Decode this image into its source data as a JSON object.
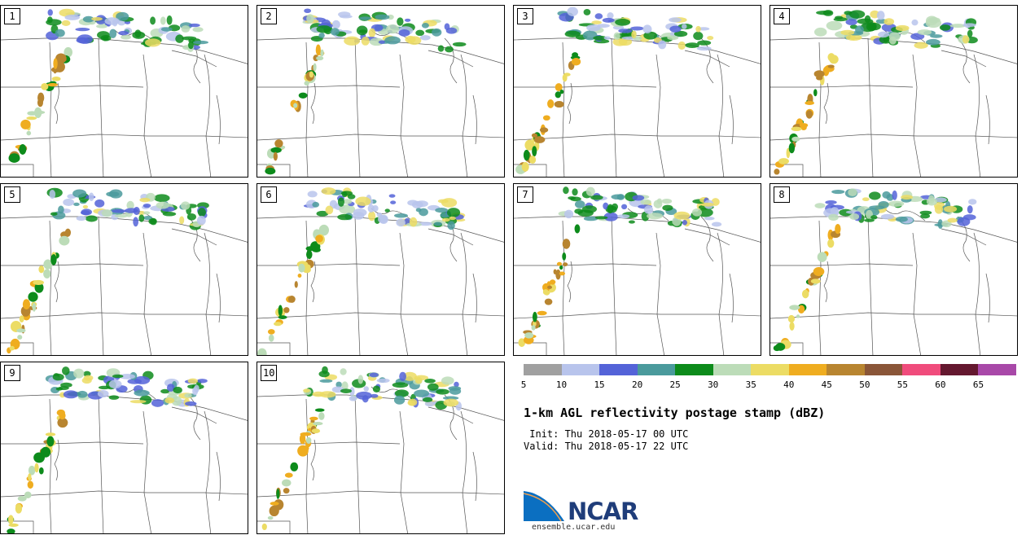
{
  "panels": [
    {
      "label": "1"
    },
    {
      "label": "2"
    },
    {
      "label": "3"
    },
    {
      "label": "4"
    },
    {
      "label": "5"
    },
    {
      "label": "6"
    },
    {
      "label": "7"
    },
    {
      "label": "8"
    },
    {
      "label": "9"
    },
    {
      "label": "10"
    }
  ],
  "colorbar": {
    "colors": [
      "#a0a0a0",
      "#b8c4ec",
      "#5463d8",
      "#4a9a9c",
      "#0d8b1b",
      "#bcdcb8",
      "#ecdc64",
      "#efad20",
      "#b88530",
      "#8a5638",
      "#f04c7c",
      "#64182f",
      "#a848a8"
    ],
    "ticks": [
      "5",
      "10",
      "15",
      "20",
      "25",
      "30",
      "35",
      "40",
      "45",
      "50",
      "55",
      "60",
      "65"
    ]
  },
  "title": "1-km AGL reflectivity postage stamp (dBZ)",
  "init": " Init: Thu 2018-05-17 00 UTC",
  "valid": "Valid: Thu 2018-05-17 22 UTC",
  "logo": {
    "text": "NCAR",
    "url": "ensemble.ucar.edu"
  },
  "colors": {
    "logo_blue": "#1f3d7a",
    "logo_swoosh": "#0b6fc1"
  }
}
